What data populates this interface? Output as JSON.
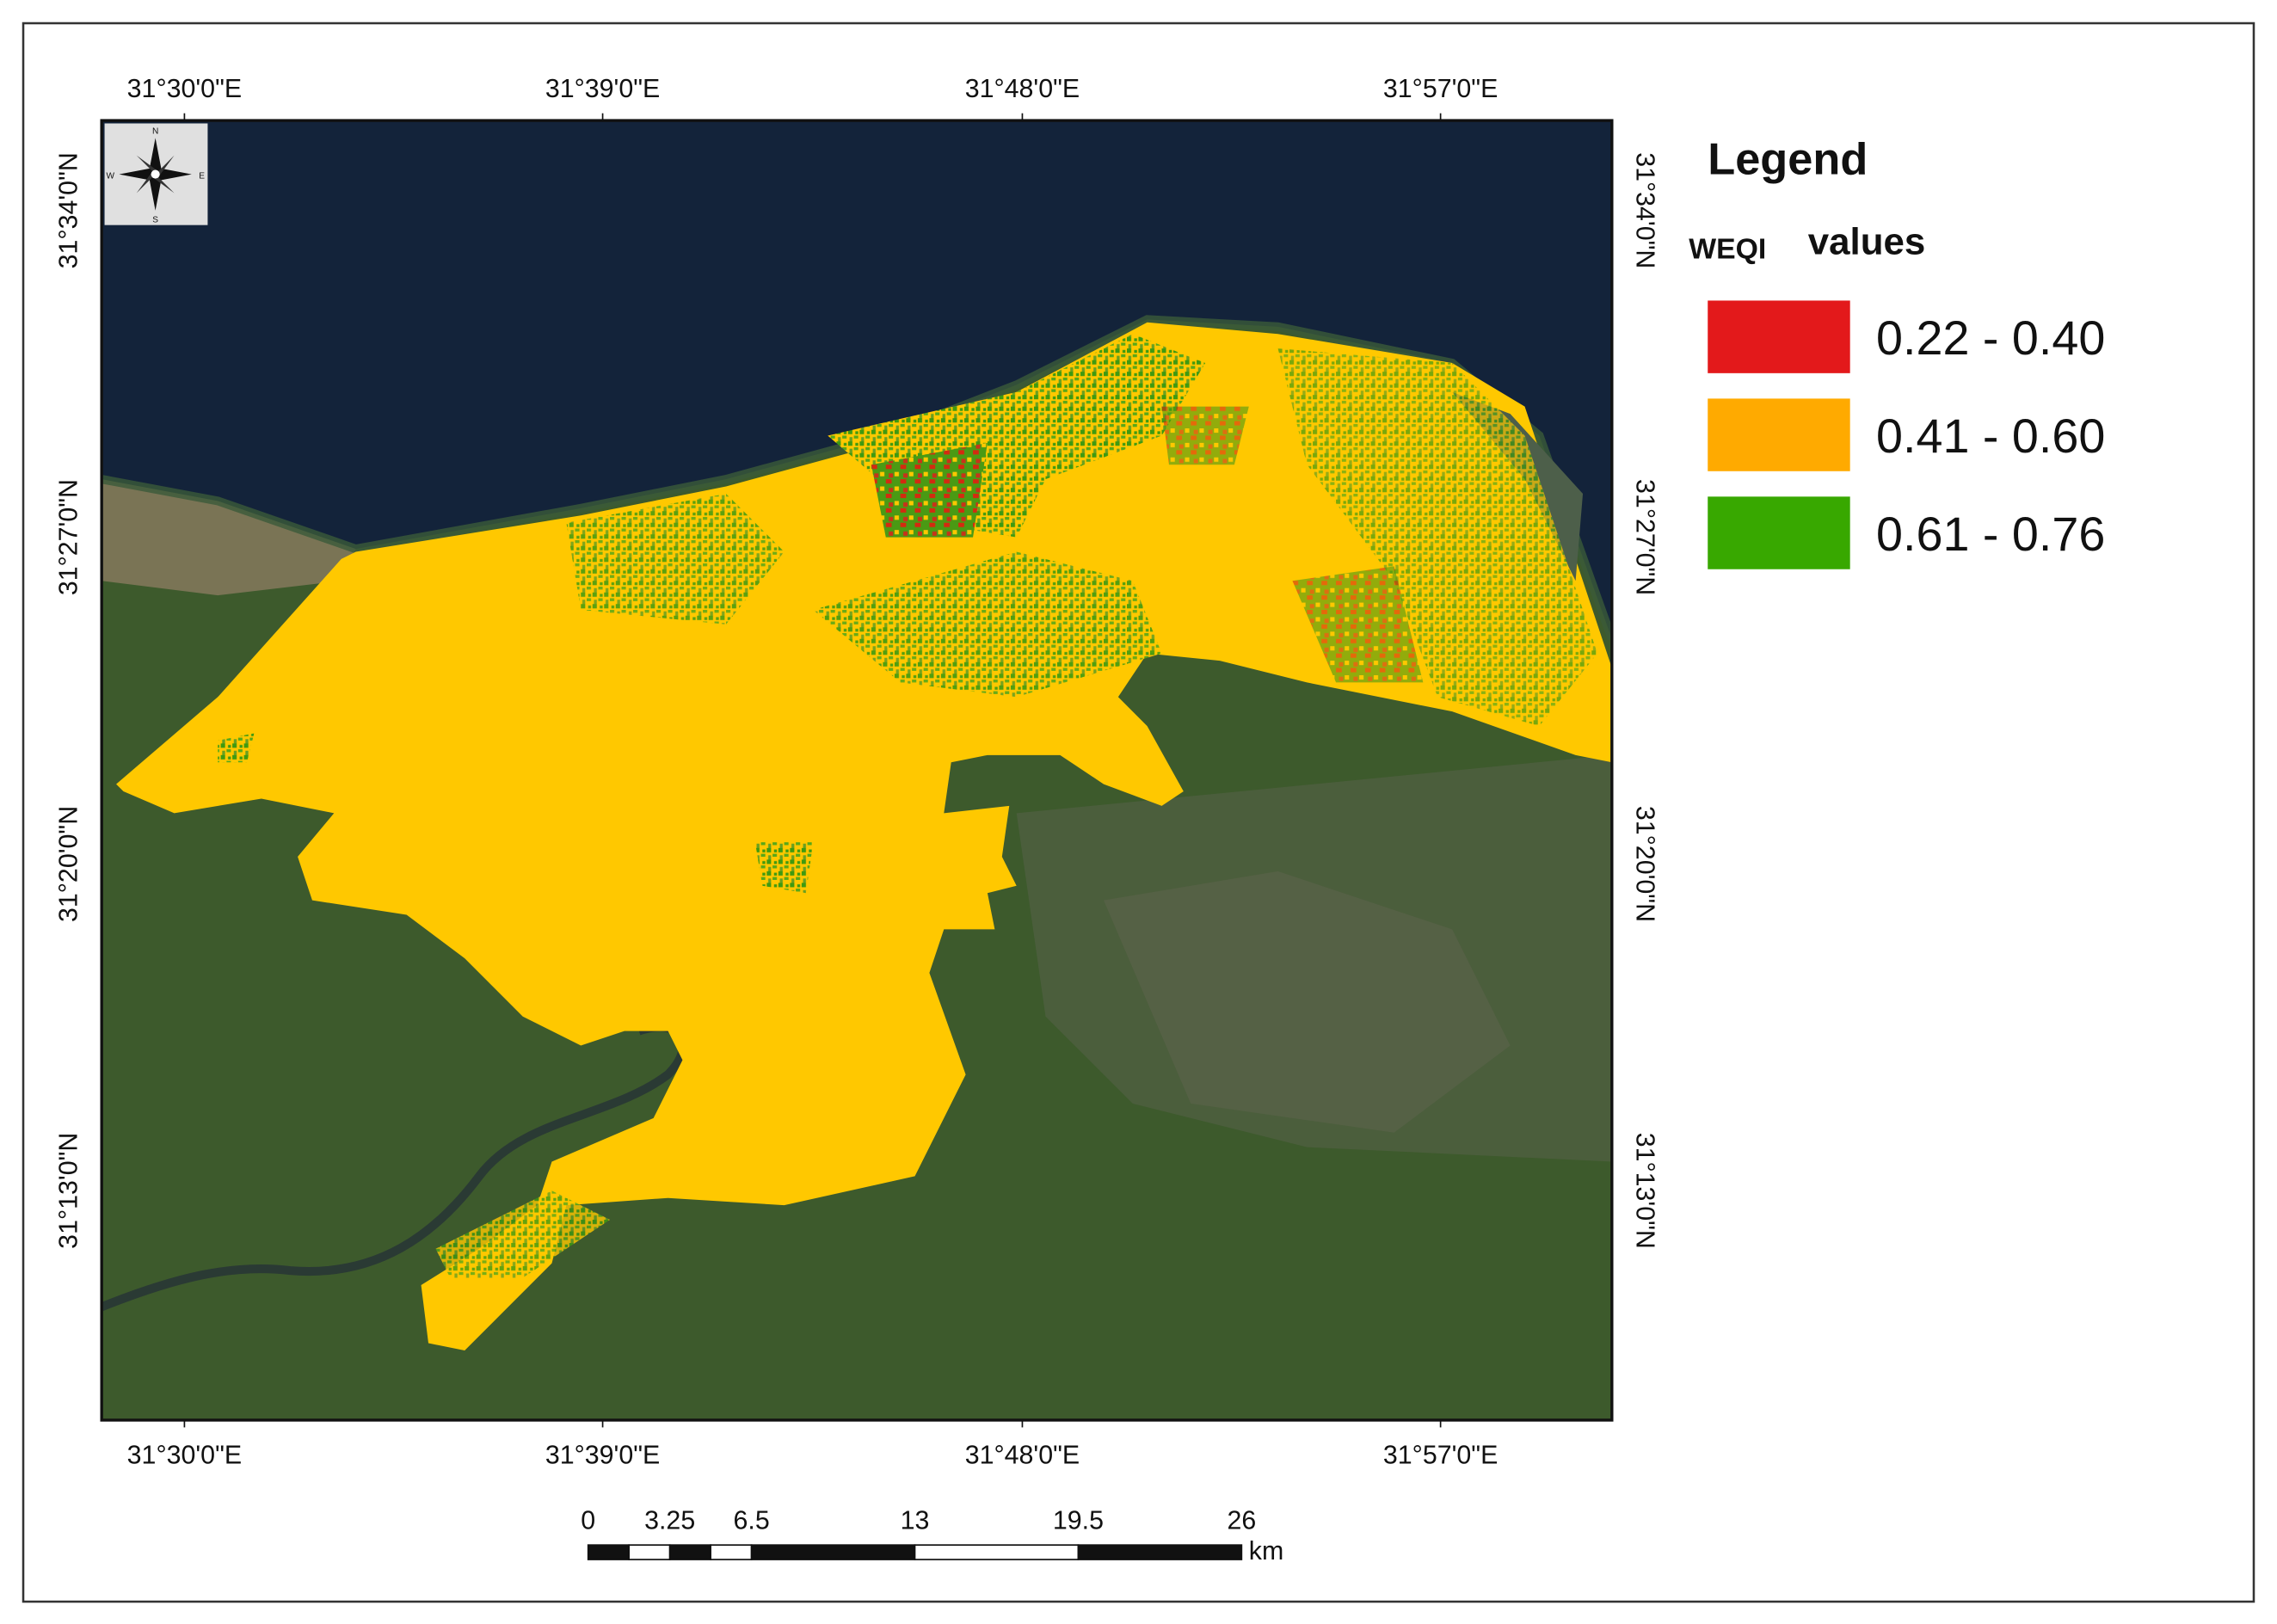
{
  "map": {
    "lon_labels_top": [
      "31°30'0\"E",
      "31°39'0\"E",
      "31°48'0\"E",
      "31°57'0\"E"
    ],
    "lon_labels_bottom": [
      "31°30'0\"E",
      "31°39'0\"E",
      "31°48'0\"E",
      "31°57'0\"E"
    ],
    "lat_labels_left": [
      "31°34'0\"N",
      "31°27'0\"N",
      "31°20'0\"N",
      "31°13'0\"N"
    ],
    "lat_labels_right": [
      "31°34'0\"N",
      "31°27'0\"N",
      "31°20'0\"N",
      "31°13'0\"N"
    ],
    "compass": [
      "N",
      "E",
      "S",
      "W"
    ]
  },
  "legend": {
    "title": "Legend",
    "subtitle_prefix": "WEQI",
    "subtitle": "values",
    "items": [
      {
        "label": "0.22 - 0.40",
        "color": "#e3191b"
      },
      {
        "label": "0.41 - 0.60",
        "color": "#ffaa00"
      },
      {
        "label": "0.61 - 0.76",
        "color": "#38a800"
      }
    ]
  },
  "scale_bar": {
    "ticks": [
      0,
      3.25,
      6.5,
      13,
      19.5,
      26
    ],
    "unit": "km"
  }
}
